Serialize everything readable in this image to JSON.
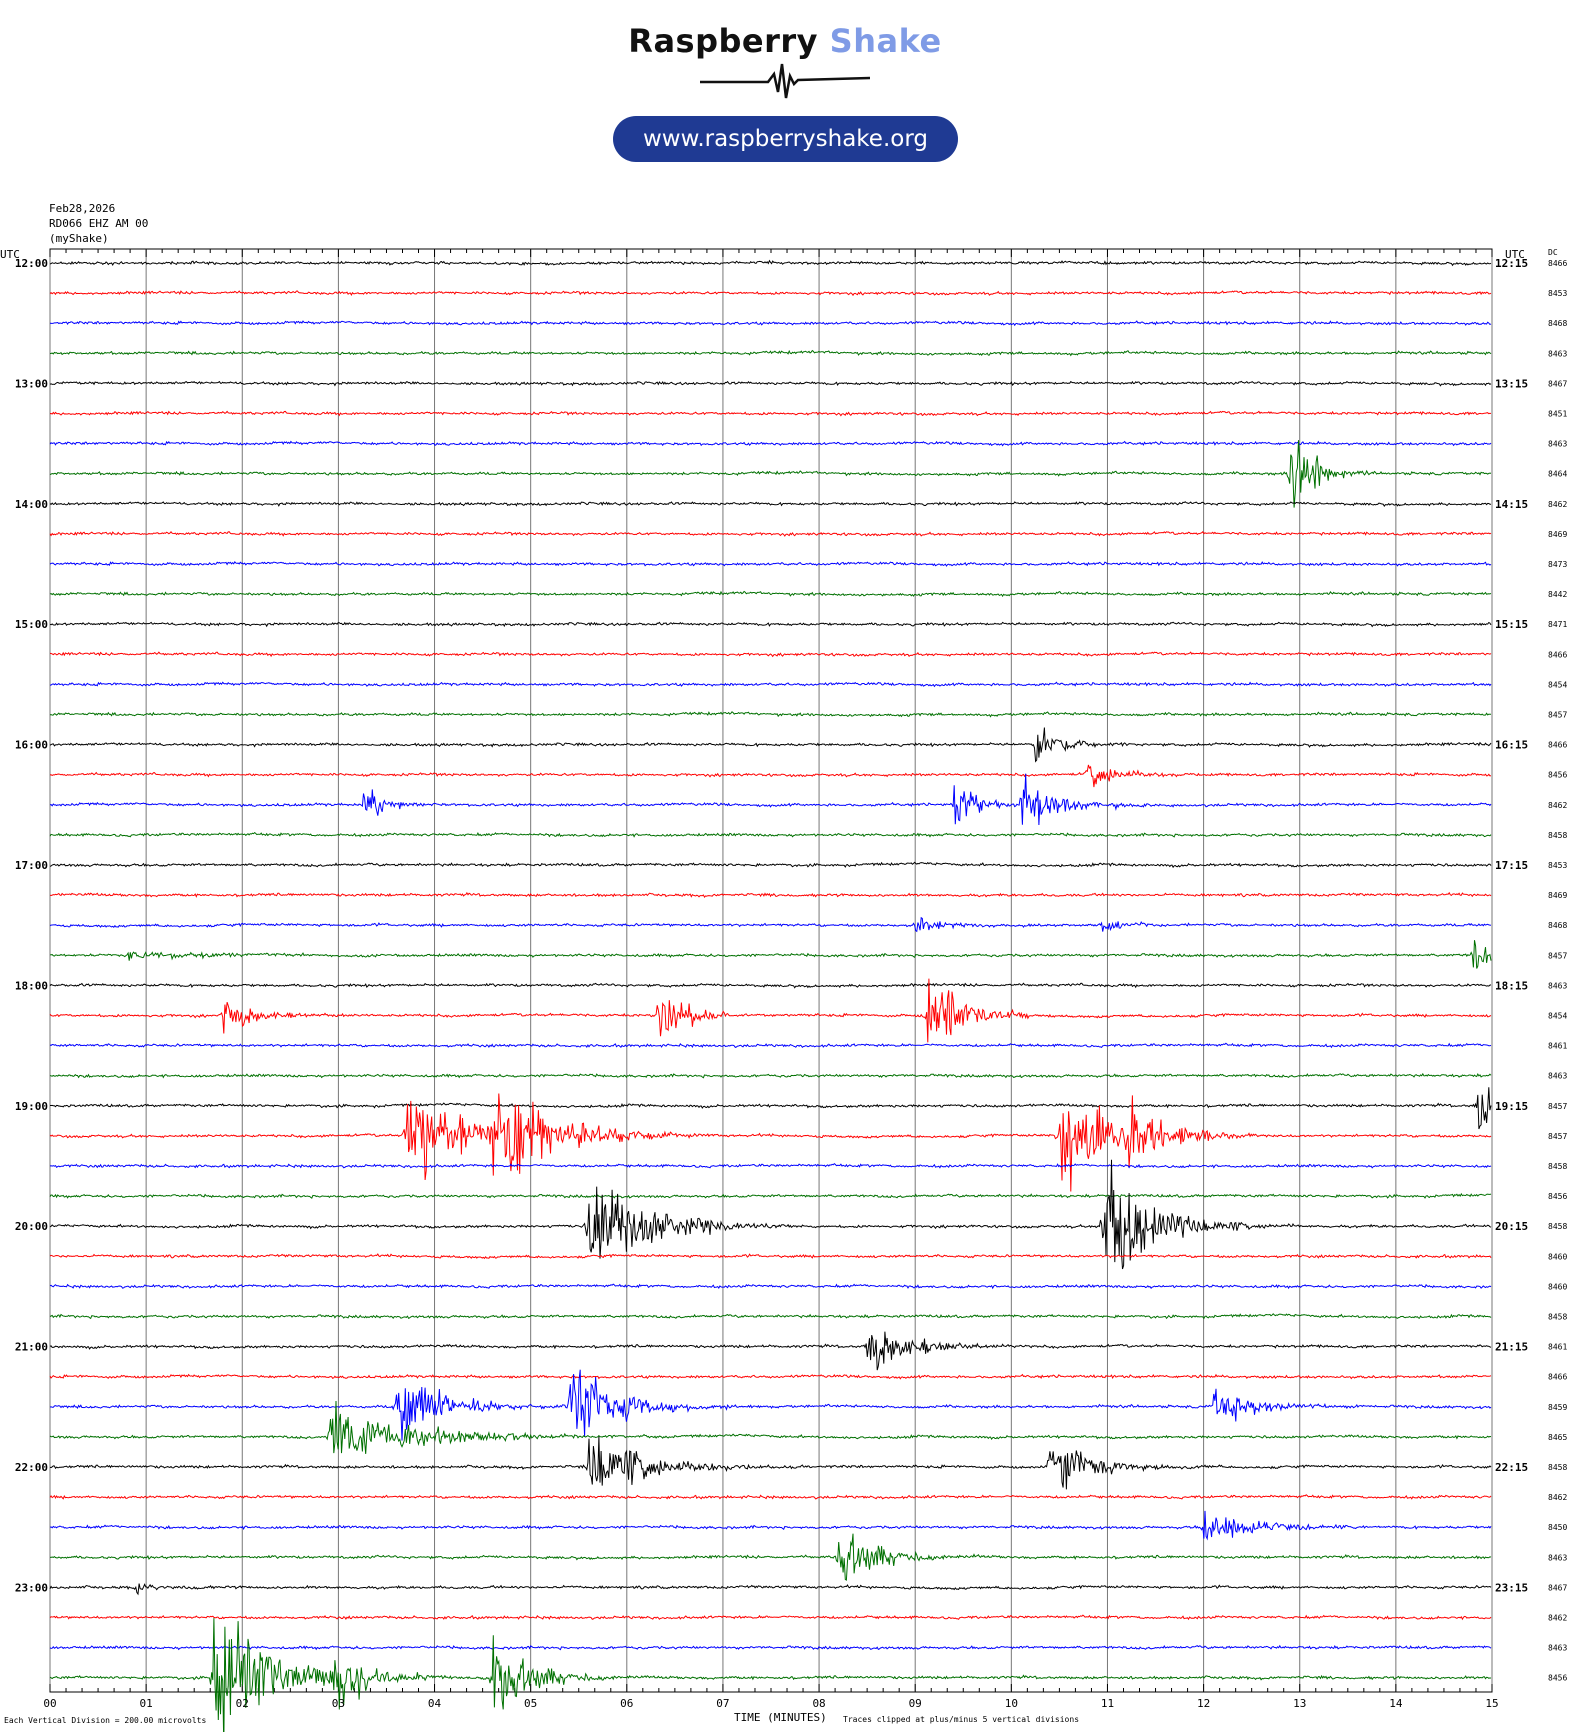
{
  "logo": {
    "word1": "Raspberry",
    "word2": "Shake",
    "url": "www.raspberryshake.org"
  },
  "header": {
    "date": "Feb28,2026",
    "station": "RD066 EHZ AM 00",
    "source": "(myShake)"
  },
  "labels": {
    "utc_left": "UTC",
    "utc_right": "UTC",
    "dc": "DC"
  },
  "footer": {
    "division": "Each Vertical Division =  200.00 microvolts",
    "xlabel": "TIME (MINUTES)",
    "clip_note": "Traces clipped at plus/minus 5 vertical divisions"
  },
  "colors": {
    "cycle": [
      "#000000",
      "#ff0000",
      "#0000ff",
      "#007000"
    ],
    "logo_accent": "#7f9be6",
    "pill": "#1f3a93"
  },
  "chart_data": {
    "type": "line",
    "title": "",
    "xlabel": "TIME (MINUTES)",
    "x_ticks": [
      "00",
      "01",
      "02",
      "03",
      "04",
      "05",
      "06",
      "07",
      "08",
      "09",
      "10",
      "11",
      "12",
      "13",
      "14",
      "15"
    ],
    "xlim": [
      0,
      15
    ],
    "grid": true,
    "left_time_labels": [
      "12:00",
      "13:00",
      "14:00",
      "15:00",
      "16:00",
      "17:00",
      "18:00",
      "19:00",
      "20:00",
      "21:00",
      "22:00",
      "23:00"
    ],
    "right_time_labels": [
      "12:15",
      "13:15",
      "14:15",
      "15:15",
      "16:15",
      "17:15",
      "18:15",
      "19:15",
      "20:15",
      "21:15",
      "22:15",
      "23:15"
    ],
    "dc_offsets": [
      8466,
      8453,
      8468,
      8463,
      8467,
      8451,
      8463,
      8464,
      8462,
      8469,
      8473,
      8442,
      8471,
      8466,
      8454,
      8457,
      8466,
      8456,
      8462,
      8458,
      8453,
      8469,
      8468,
      8457,
      8463,
      8454,
      8461,
      8463,
      8457,
      8457,
      8458,
      8456,
      8458,
      8460,
      8460,
      8458,
      8461,
      8466,
      8459,
      8465,
      8458,
      8462,
      8450,
      8463,
      8467,
      8462,
      8463,
      8456
    ],
    "events": [
      {
        "row": 7,
        "minute": 12.9,
        "amp": 4.2,
        "dur": 0.35
      },
      {
        "row": 16,
        "minute": 10.25,
        "amp": 1.4,
        "dur": 0.4
      },
      {
        "row": 17,
        "minute": 10.8,
        "amp": 1.1,
        "dur": 0.5
      },
      {
        "row": 18,
        "minute": 3.25,
        "amp": 1.5,
        "dur": 0.3
      },
      {
        "row": 18,
        "minute": 9.4,
        "amp": 1.4,
        "dur": 0.45
      },
      {
        "row": 18,
        "minute": 10.1,
        "amp": 1.8,
        "dur": 0.6
      },
      {
        "row": 22,
        "minute": 9.0,
        "amp": 0.5,
        "dur": 0.5
      },
      {
        "row": 22,
        "minute": 10.95,
        "amp": 0.6,
        "dur": 0.3
      },
      {
        "row": 23,
        "minute": 14.8,
        "amp": 1.2,
        "dur": 0.3
      },
      {
        "row": 23,
        "minute": 0.8,
        "amp": 0.35,
        "dur": 1.2
      },
      {
        "row": 25,
        "minute": 1.8,
        "amp": 1.3,
        "dur": 0.5
      },
      {
        "row": 25,
        "minute": 6.3,
        "amp": 2.2,
        "dur": 0.45
      },
      {
        "row": 25,
        "minute": 9.1,
        "amp": 3.2,
        "dur": 0.55
      },
      {
        "row": 28,
        "minute": 14.85,
        "amp": 1.8,
        "dur": 0.6
      },
      {
        "row": 29,
        "minute": 3.7,
        "amp": 4.0,
        "dur": 0.8
      },
      {
        "row": 29,
        "minute": 4.6,
        "amp": 4.6,
        "dur": 0.9
      },
      {
        "row": 29,
        "minute": 10.5,
        "amp": 4.0,
        "dur": 0.7
      },
      {
        "row": 29,
        "minute": 11.2,
        "amp": 2.8,
        "dur": 0.6
      },
      {
        "row": 32,
        "minute": 5.6,
        "amp": 4.2,
        "dur": 0.9
      },
      {
        "row": 32,
        "minute": 10.95,
        "amp": 4.2,
        "dur": 0.8
      },
      {
        "row": 36,
        "minute": 8.5,
        "amp": 1.8,
        "dur": 0.7
      },
      {
        "row": 38,
        "minute": 3.6,
        "amp": 3.0,
        "dur": 0.7
      },
      {
        "row": 38,
        "minute": 5.4,
        "amp": 2.8,
        "dur": 0.8
      },
      {
        "row": 38,
        "minute": 12.1,
        "amp": 1.2,
        "dur": 0.7
      },
      {
        "row": 39,
        "minute": 2.9,
        "amp": 2.0,
        "dur": 1.4
      },
      {
        "row": 40,
        "minute": 5.6,
        "amp": 2.5,
        "dur": 0.9
      },
      {
        "row": 40,
        "minute": 10.4,
        "amp": 2.0,
        "dur": 0.7
      },
      {
        "row": 42,
        "minute": 12.0,
        "amp": 1.2,
        "dur": 0.8
      },
      {
        "row": 43,
        "minute": 8.2,
        "amp": 2.3,
        "dur": 0.6
      },
      {
        "row": 44,
        "minute": 0.9,
        "amp": 0.4,
        "dur": 0.3
      },
      {
        "row": 47,
        "minute": 1.7,
        "amp": 4.5,
        "dur": 1.0
      },
      {
        "row": 47,
        "minute": 2.9,
        "amp": 2.2,
        "dur": 0.6
      },
      {
        "row": 47,
        "minute": 4.6,
        "amp": 3.0,
        "dur": 0.6
      }
    ]
  }
}
